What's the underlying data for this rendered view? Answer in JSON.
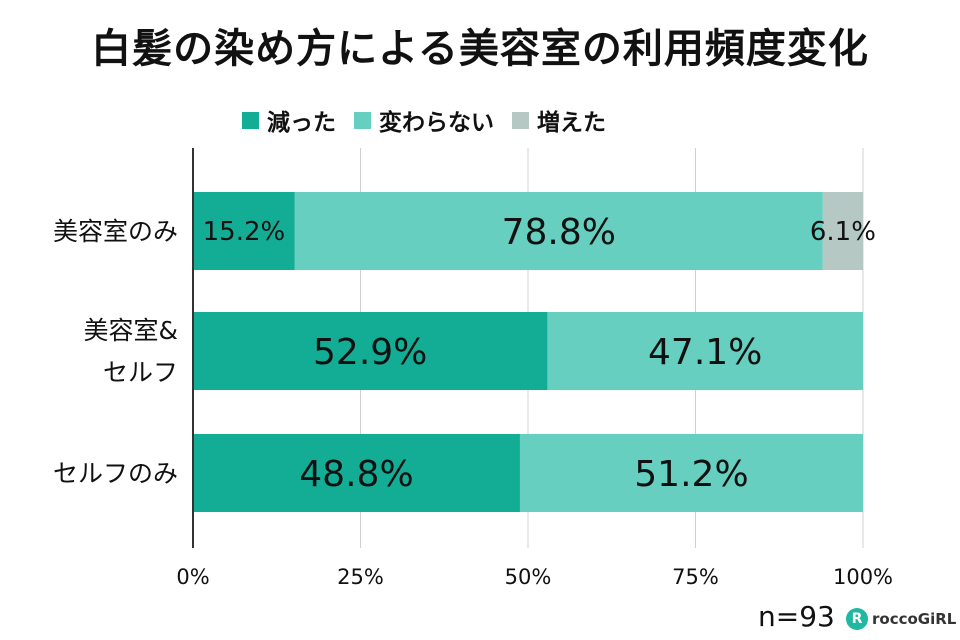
{
  "colors": {
    "decreased": "#13ad96",
    "unchanged": "#66cfbf",
    "increased": "#b5c8c4",
    "axis": "#333333",
    "grid": "#d0d0d0"
  },
  "footer": {
    "sample": "n=93",
    "brand": "roccoGiRL",
    "brand_icon": "R"
  },
  "chart_data": {
    "type": "bar",
    "orientation": "horizontal",
    "stacked": true,
    "title": "白髪の染め方による美容室の利用頻度変化",
    "categories": [
      "美容室のみ",
      "美容室&\nセルフ",
      "セルフのみ"
    ],
    "series": [
      {
        "name": "減った",
        "values": [
          15.2,
          52.9,
          48.8
        ],
        "labels": [
          "15.2%",
          "52.9%",
          "48.8%"
        ]
      },
      {
        "name": "変わらない",
        "values": [
          78.8,
          47.1,
          51.2
        ],
        "labels": [
          "78.8%",
          "47.1%",
          "51.2%"
        ]
      },
      {
        "name": "増えた",
        "values": [
          6.1,
          0,
          0
        ],
        "labels": [
          "6.1%",
          "",
          ""
        ]
      }
    ],
    "xlim": [
      0,
      100
    ],
    "xticks": [
      0,
      25,
      50,
      75,
      100
    ],
    "xtick_labels": [
      "0%",
      "25%",
      "50%",
      "75%",
      "100%"
    ],
    "grid": true,
    "legend_position": "top"
  }
}
